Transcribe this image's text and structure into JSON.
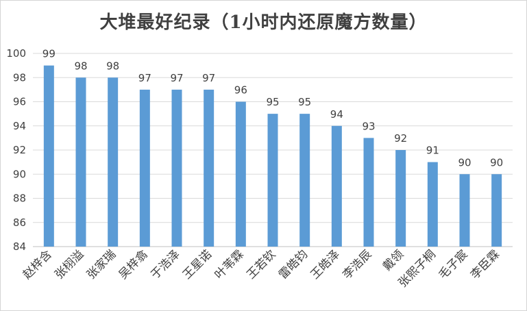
{
  "chart_data": {
    "type": "bar",
    "title": "大堆最好纪录（1小时内还原魔方数量）",
    "categories": [
      "赵梓含",
      "张栩溢",
      "张家瑞",
      "吴梓翕",
      "于浩泽",
      "王星诺",
      "叶苇霖",
      "王若钦",
      "雷皓钧",
      "王皓泽",
      "李浩辰",
      "戴领",
      "张熙子桐",
      "毛子宸",
      "李臣霖"
    ],
    "values": [
      99,
      98,
      98,
      97,
      97,
      97,
      96,
      95,
      95,
      94,
      93,
      92,
      91,
      90,
      90
    ],
    "xlabel": "",
    "ylabel": "",
    "ylim": [
      84,
      100
    ],
    "yticks": [
      84,
      86,
      88,
      90,
      92,
      94,
      96,
      98,
      100
    ],
    "grid": true,
    "bar_color": "#5b9bd5",
    "grid_color": "#d9d9d9"
  }
}
